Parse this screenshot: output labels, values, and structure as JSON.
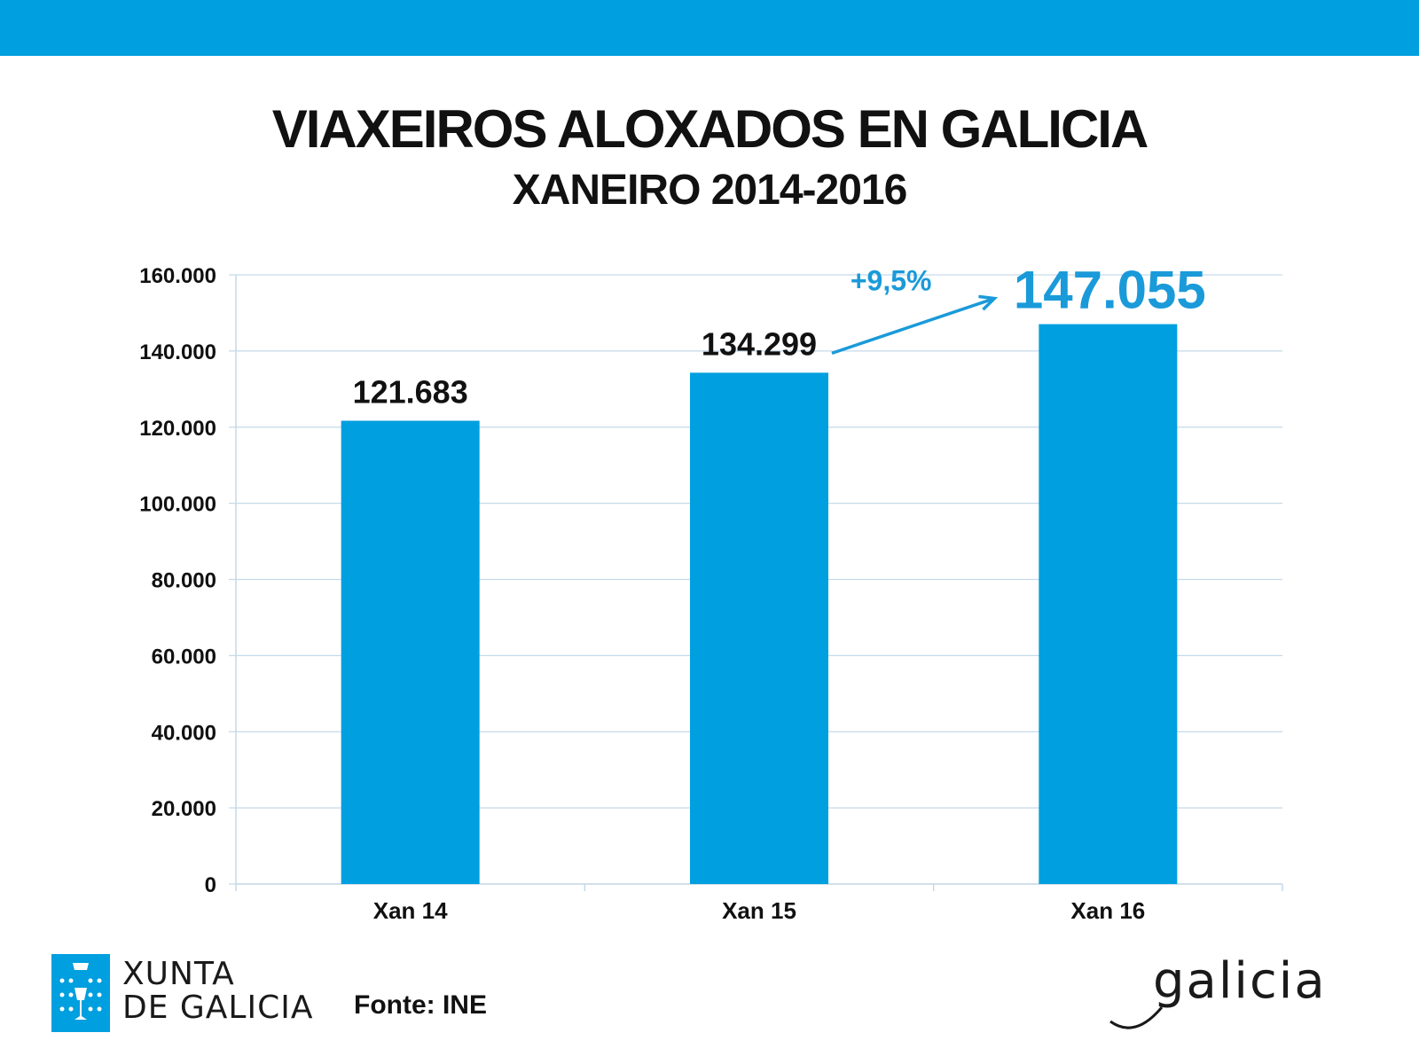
{
  "header": {
    "title": "VIAXEIROS ALOXADOS EN GALICIA",
    "subtitle": "XANEIRO 2014-2016"
  },
  "chart_data": {
    "type": "bar",
    "title": "VIAXEIROS ALOXADOS EN GALICIA",
    "subtitle": "XANEIRO 2014-2016",
    "categories": [
      "Xan 14",
      "Xan 15",
      "Xan 16"
    ],
    "values": [
      121683,
      134299,
      147055
    ],
    "data_labels": [
      "121.683",
      "134.299",
      "147.055"
    ],
    "ylim": [
      0,
      160000
    ],
    "yticks": [
      0,
      20000,
      40000,
      60000,
      80000,
      100000,
      120000,
      140000,
      160000
    ],
    "ytick_labels": [
      "0",
      "20.000",
      "40.000",
      "60.000",
      "80.000",
      "100.000",
      "120.000",
      "140.000",
      "160.000"
    ],
    "grid": true,
    "annotation": {
      "text": "+9,5%",
      "from_category": "Xan 15",
      "to_category": "Xan 16"
    },
    "colors": {
      "bar": "#009fdf",
      "grid": "#c5d9e8",
      "highlight_label": "#1a9ad9"
    }
  },
  "footer": {
    "source": "Fonte: INE",
    "logo_left_line1": "XUNTA",
    "logo_left_line2": "DE GALICIA",
    "logo_right": "galicia"
  },
  "colors": {
    "brand_blue": "#009fdf"
  }
}
